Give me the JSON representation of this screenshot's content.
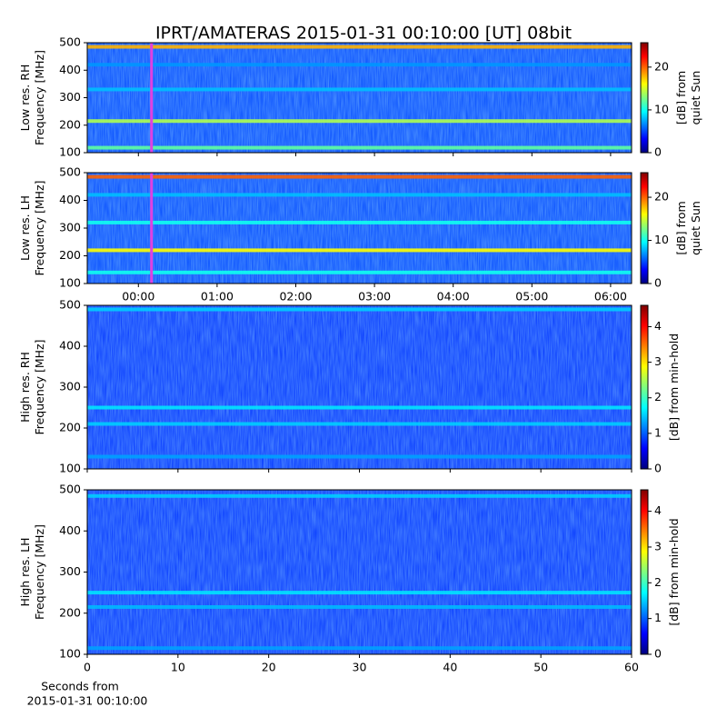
{
  "chart_data": [
    {
      "type": "heatmap",
      "title": "IPRT/AMATERAS 2015-01-31 00:10:00 [UT]   08bit",
      "ylabel": [
        "Low res. RH",
        "Frequency [MHz]"
      ],
      "ylim": [
        100,
        500
      ],
      "yticks": [
        100,
        200,
        300,
        400,
        500
      ],
      "xlim": [
        -39,
        376
      ],
      "background": 5,
      "bands": [
        {
          "freq": 485,
          "value": 18
        },
        {
          "freq": 420,
          "value": 7
        },
        {
          "freq": 330,
          "value": 8
        },
        {
          "freq": 215,
          "value": 14
        },
        {
          "freq": 118,
          "value": 12
        }
      ],
      "marker_x": 10,
      "marker_color": "#e040e0",
      "clim": [
        0,
        25.7
      ],
      "cticks": [
        0,
        10,
        20
      ],
      "clabel": [
        "[dB] from",
        "quiet Sun"
      ],
      "colormap": [
        "#00007f",
        "#0000ff",
        "#007fff",
        "#00ffff",
        "#7fff7f",
        "#ffff00",
        "#ff7f00",
        "#ff0000",
        "#7f0000"
      ]
    },
    {
      "type": "heatmap",
      "ylabel": [
        "Low res. LH",
        "Frequency [MHz]"
      ],
      "ylim": [
        100,
        500
      ],
      "yticks": [
        100,
        200,
        300,
        400,
        500
      ],
      "xlim": [
        -39,
        376
      ],
      "xticks": [
        {
          "value": 0,
          "label": "00:00"
        },
        {
          "value": 60,
          "label": "01:00"
        },
        {
          "value": 120,
          "label": "02:00"
        },
        {
          "value": 180,
          "label": "03:00"
        },
        {
          "value": 240,
          "label": "04:00"
        },
        {
          "value": 300,
          "label": "05:00"
        },
        {
          "value": 360,
          "label": "06:00"
        }
      ],
      "background": 5,
      "bands": [
        {
          "freq": 485,
          "value": 20
        },
        {
          "freq": 420,
          "value": 8
        },
        {
          "freq": 320,
          "value": 10
        },
        {
          "freq": 220,
          "value": 16
        },
        {
          "freq": 140,
          "value": 10
        }
      ],
      "marker_x": 10,
      "marker_color": "#e040e0",
      "clim": [
        0,
        25.7
      ],
      "cticks": [
        0,
        10,
        20
      ],
      "clabel": [
        "[dB] from",
        "quiet Sun"
      ],
      "colormap": [
        "#00007f",
        "#0000ff",
        "#007fff",
        "#00ffff",
        "#7fff7f",
        "#ffff00",
        "#ff7f00",
        "#ff0000",
        "#7f0000"
      ]
    },
    {
      "type": "heatmap",
      "ylabel": [
        "High res. RH",
        "Frequency [MHz]"
      ],
      "ylim": [
        100,
        500
      ],
      "yticks": [
        100,
        200,
        300,
        400,
        500
      ],
      "xlim": [
        0,
        60
      ],
      "background": 0.8,
      "bands": [
        {
          "freq": 490,
          "value": 1.5
        },
        {
          "freq": 250,
          "value": 1.6
        },
        {
          "freq": 210,
          "value": 1.5
        },
        {
          "freq": 130,
          "value": 1.3
        }
      ],
      "clim": [
        0,
        4.6
      ],
      "cticks": [
        0,
        1,
        2,
        3,
        4
      ],
      "clabel": [
        "[dB] from min-hold"
      ],
      "colormap": [
        "#00007f",
        "#0000ff",
        "#007fff",
        "#00ffff",
        "#7fff7f",
        "#ffff00",
        "#ff7f00",
        "#ff0000",
        "#7f0000"
      ]
    },
    {
      "type": "heatmap",
      "ylabel": [
        "High res. LH",
        "Frequency [MHz]"
      ],
      "ylim": [
        100,
        500
      ],
      "yticks": [
        100,
        200,
        300,
        400,
        500
      ],
      "xlim": [
        0,
        60
      ],
      "xticks": [
        0,
        10,
        20,
        30,
        40,
        50,
        60
      ],
      "xlabel": [
        "Seconds from",
        "2015-01-31 00:10:00"
      ],
      "background": 0.8,
      "bands": [
        {
          "freq": 485,
          "value": 1.5
        },
        {
          "freq": 250,
          "value": 1.6
        },
        {
          "freq": 215,
          "value": 1.4
        },
        {
          "freq": 115,
          "value": 1.3
        }
      ],
      "clim": [
        0,
        4.6
      ],
      "cticks": [
        0,
        1,
        2,
        3,
        4
      ],
      "clabel": [
        "[dB] from min-hold"
      ],
      "colormap": [
        "#00007f",
        "#0000ff",
        "#007fff",
        "#00ffff",
        "#7fff7f",
        "#ffff00",
        "#ff7f00",
        "#ff0000",
        "#7f0000"
      ]
    }
  ]
}
